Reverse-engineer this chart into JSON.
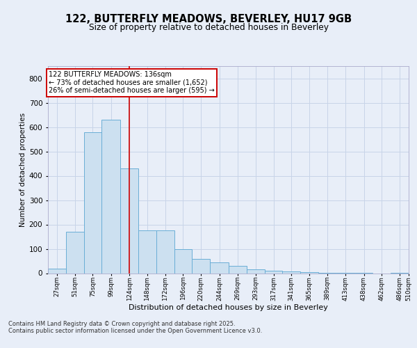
{
  "title_line1": "122, BUTTERFLY MEADOWS, BEVERLEY, HU17 9GB",
  "title_line2": "Size of property relative to detached houses in Beverley",
  "xlabel": "Distribution of detached houses by size in Beverley",
  "ylabel": "Number of detached properties",
  "footer_line1": "Contains HM Land Registry data © Crown copyright and database right 2025.",
  "footer_line2": "Contains public sector information licensed under the Open Government Licence v3.0.",
  "annotation_line1": "122 BUTTERFLY MEADOWS: 136sqm",
  "annotation_line2": "← 73% of detached houses are smaller (1,652)",
  "annotation_line3": "26% of semi-detached houses are larger (595) →",
  "bar_left_edges": [
    27,
    51,
    75,
    99,
    124,
    148,
    172,
    196,
    220,
    244,
    269,
    293,
    317,
    341,
    365,
    389,
    413,
    438,
    462,
    486
  ],
  "bar_widths": [
    24,
    24,
    24,
    25,
    24,
    24,
    24,
    24,
    24,
    25,
    24,
    24,
    24,
    24,
    24,
    24,
    25,
    24,
    24,
    24
  ],
  "bar_heights": [
    20,
    170,
    580,
    630,
    430,
    175,
    175,
    100,
    60,
    45,
    30,
    15,
    10,
    7,
    3,
    2,
    1,
    1,
    0,
    2
  ],
  "bar_color": "#cce0f0",
  "bar_edge_color": "#6aaed6",
  "vline_x": 136,
  "vline_color": "#cc0000",
  "ylim": [
    0,
    850
  ],
  "yticks": [
    0,
    100,
    200,
    300,
    400,
    500,
    600,
    700,
    800
  ],
  "grid_color": "#c8d4e8",
  "bg_color": "#e8eef8",
  "plot_bg_color": "#e8eef8",
  "annotation_box_facecolor": "#ffffff",
  "annotation_box_edgecolor": "#cc0000",
  "tick_labels": [
    "27sqm",
    "51sqm",
    "75sqm",
    "99sqm",
    "124sqm",
    "148sqm",
    "172sqm",
    "196sqm",
    "220sqm",
    "244sqm",
    "269sqm",
    "293sqm",
    "317sqm",
    "341sqm",
    "365sqm",
    "389sqm",
    "413sqm",
    "438sqm",
    "462sqm",
    "486sqm",
    "510sqm"
  ],
  "xlim_left": 27,
  "xlim_right": 510
}
